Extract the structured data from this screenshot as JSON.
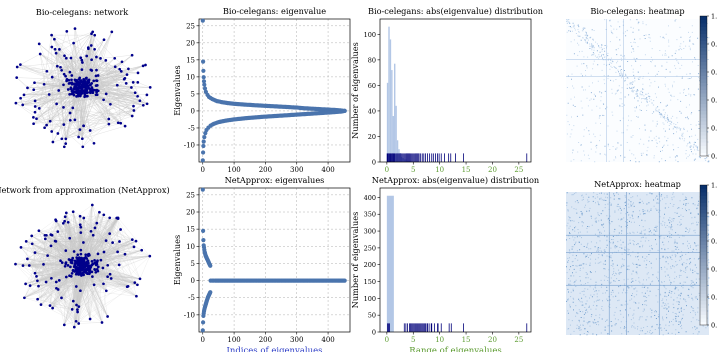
{
  "colors": {
    "node": "#00008b",
    "edge": "#c8c8c8",
    "marker": "#4a74ad",
    "hist_bar": "#b3c7e6",
    "rug": "#00007a",
    "grid": "#b0b0b0",
    "xlabel_blue": "#2f3fc7",
    "xlabel_green": "#5a9a2e",
    "heat_low": "#f7fbff",
    "heat_high": "#08306b"
  },
  "chart_data": [
    {
      "type": "network",
      "title": "Bio-celegans: network",
      "density": "sparse"
    },
    {
      "type": "scatter",
      "title": "Bio-celegans: eigenvalue",
      "xlabel": "",
      "ylabel": "Eigenvalues",
      "xlim": [
        -12,
        470
      ],
      "ylim": [
        -15,
        27
      ],
      "xticks": [
        0,
        100,
        200,
        300,
        400
      ],
      "yticks": [
        -10,
        -5,
        0,
        5,
        10,
        15,
        20,
        25
      ],
      "grid": true,
      "series": [
        {
          "x": [
            0,
            1,
            2,
            3,
            4,
            5,
            7,
            10,
            15,
            20,
            30,
            45,
            60,
            80,
            100,
            130,
            160,
            200,
            240,
            280,
            295
          ],
          "y": [
            26.5,
            14.5,
            11.8,
            9.9,
            8.7,
            7.7,
            6.6,
            5.6,
            4.7,
            4.1,
            3.5,
            2.9,
            2.6,
            2.3,
            2.1,
            1.9,
            1.7,
            1.5,
            1.3,
            1.1,
            1.0
          ]
        },
        {
          "x": [
            300,
            310,
            330,
            360,
            390,
            420,
            440,
            450,
            453
          ],
          "y": [
            1.0,
            0.9,
            0.75,
            0.6,
            0.45,
            0.3,
            0.15,
            0.05,
            0.0
          ]
        },
        {
          "x": [
            0,
            1,
            2,
            3,
            5,
            8,
            12,
            18,
            25,
            35,
            50,
            70,
            100,
            140,
            180,
            230,
            280,
            330,
            380,
            420,
            445,
            453
          ],
          "y": [
            -14.5,
            -12.2,
            -10.3,
            -9.0,
            -7.7,
            -6.5,
            -5.6,
            -4.9,
            -4.3,
            -3.8,
            -3.3,
            -2.9,
            -2.5,
            -2.1,
            -1.8,
            -1.5,
            -1.2,
            -0.9,
            -0.6,
            -0.35,
            -0.15,
            0.0
          ]
        }
      ]
    },
    {
      "type": "bar",
      "title": "Bio-celegans: abs(eigenvalue) distribution",
      "xlabel": "",
      "ylabel": "Number of eigenvalues",
      "xlim": [
        -1.3,
        27.3
      ],
      "ylim": [
        0,
        112
      ],
      "xticks": [
        0,
        5,
        10,
        15,
        20,
        25
      ],
      "yticks": [
        0,
        20,
        40,
        60,
        80,
        100
      ],
      "bin_width": 0.27,
      "bin_start": 0,
      "values": [
        62,
        106,
        96,
        72,
        36,
        77,
        44,
        17,
        10,
        7,
        4,
        3,
        2,
        2,
        1,
        1,
        1
      ],
      "rug": [
        0.05,
        0.15,
        0.3,
        0.45,
        0.6,
        0.75,
        0.9,
        1.05,
        1.2,
        1.35,
        1.5,
        1.7,
        1.9,
        2.1,
        2.3,
        2.5,
        2.7,
        2.9,
        3.1,
        3.3,
        3.5,
        3.7,
        3.9,
        4.1,
        4.3,
        4.5,
        4.7,
        4.9,
        5.1,
        5.3,
        5.5,
        5.7,
        5.9,
        6.1,
        6.4,
        6.7,
        7.0,
        7.3,
        7.7,
        8.1,
        8.5,
        8.8,
        9.2,
        9.6,
        9.9,
        10.3,
        10.9,
        11.7,
        12.1,
        13.0,
        14.5,
        26.5
      ]
    },
    {
      "type": "heatmap",
      "title": "Bio-celegans: heatmap",
      "colorbar_ticks": [
        "1.",
        "0.",
        "0.",
        "0.",
        "0.",
        "0."
      ],
      "colorbar_values": [
        1.0,
        0.8,
        0.6,
        0.4,
        0.2,
        0.0
      ],
      "density": "sparse"
    },
    {
      "type": "network",
      "title": "Network from approximation (NetApprox)",
      "density": "dense"
    },
    {
      "type": "scatter",
      "title": "NetApprox: eigenvalues",
      "xlabel": "Indices of eigenvalues",
      "ylabel": "Eigenvalues",
      "xlim": [
        -12,
        470
      ],
      "ylim": [
        -15,
        27
      ],
      "xticks": [
        0,
        100,
        200,
        300,
        400
      ],
      "yticks": [
        -10,
        -5,
        0,
        5,
        10,
        15,
        20,
        25
      ],
      "grid": true,
      "series": [
        {
          "x": [
            0,
            1,
            2,
            3,
            4,
            5,
            6,
            7,
            8,
            9,
            10,
            11,
            12,
            13,
            14,
            15,
            16,
            17,
            18,
            19,
            20,
            21,
            22,
            23,
            24
          ],
          "y": [
            26.5,
            14.5,
            11.8,
            10.3,
            9.7,
            9.0,
            8.4,
            8.0,
            7.6,
            7.3,
            7.1,
            6.9,
            6.7,
            6.5,
            6.3,
            6.1,
            5.9,
            5.7,
            5.5,
            5.3,
            5.1,
            4.9,
            4.7,
            4.5,
            4.3
          ]
        },
        {
          "x": [
            25,
            40,
            60,
            80,
            100,
            130,
            160,
            190,
            220,
            250,
            280,
            310,
            340,
            370,
            400,
            430,
            453
          ],
          "y": [
            0,
            0,
            0,
            0,
            0,
            0,
            0,
            0,
            0,
            0,
            0,
            0,
            0,
            0,
            0,
            0,
            0
          ]
        },
        {
          "x": [
            0,
            1,
            2,
            3,
            4,
            5,
            6,
            7,
            8,
            9,
            10,
            11,
            12,
            13,
            14,
            15,
            16,
            17,
            18,
            19,
            20,
            21,
            22,
            23,
            24
          ],
          "y": [
            -14.5,
            -12.2,
            -10.3,
            -9.6,
            -9.0,
            -8.5,
            -8.1,
            -7.7,
            -7.4,
            -7.1,
            -6.8,
            -6.5,
            -6.2,
            -5.9,
            -5.6,
            -5.3,
            -5.0,
            -4.8,
            -4.6,
            -4.4,
            -4.2,
            -4.0,
            -3.8,
            -3.6,
            -3.4
          ]
        }
      ]
    },
    {
      "type": "bar",
      "title": "NetApprox: abs(eigenvalue) distribution",
      "xlabel": "Range of eigenvalues",
      "ylabel": "Number of eigenvalues",
      "xlim": [
        -1.3,
        27.3
      ],
      "ylim": [
        0,
        428
      ],
      "xticks": [
        0,
        5,
        10,
        15,
        20,
        25
      ],
      "yticks": [
        0,
        50,
        100,
        150,
        200,
        250,
        300,
        350,
        400
      ],
      "bin_width": 1.33,
      "bin_start": 0,
      "values": [
        405
      ],
      "rug": [
        0.1,
        0.3,
        0.5,
        3.3,
        3.6,
        3.9,
        4.3,
        4.5,
        4.7,
        4.9,
        5.1,
        5.3,
        5.5,
        5.7,
        5.9,
        6.1,
        6.3,
        6.5,
        6.7,
        6.9,
        7.1,
        7.3,
        7.6,
        7.7,
        8.0,
        8.4,
        8.5,
        9.0,
        9.6,
        9.7,
        10.3,
        11.8,
        12.2,
        14.5,
        26.5
      ]
    },
    {
      "type": "heatmap",
      "title": "NetApprox: heatmap",
      "colorbar_ticks": [
        "1.",
        "0.",
        "0.",
        "0.",
        "0.",
        "0."
      ],
      "colorbar_values": [
        1.0,
        0.8,
        0.6,
        0.4,
        0.2,
        0.0
      ],
      "density": "dense"
    }
  ]
}
